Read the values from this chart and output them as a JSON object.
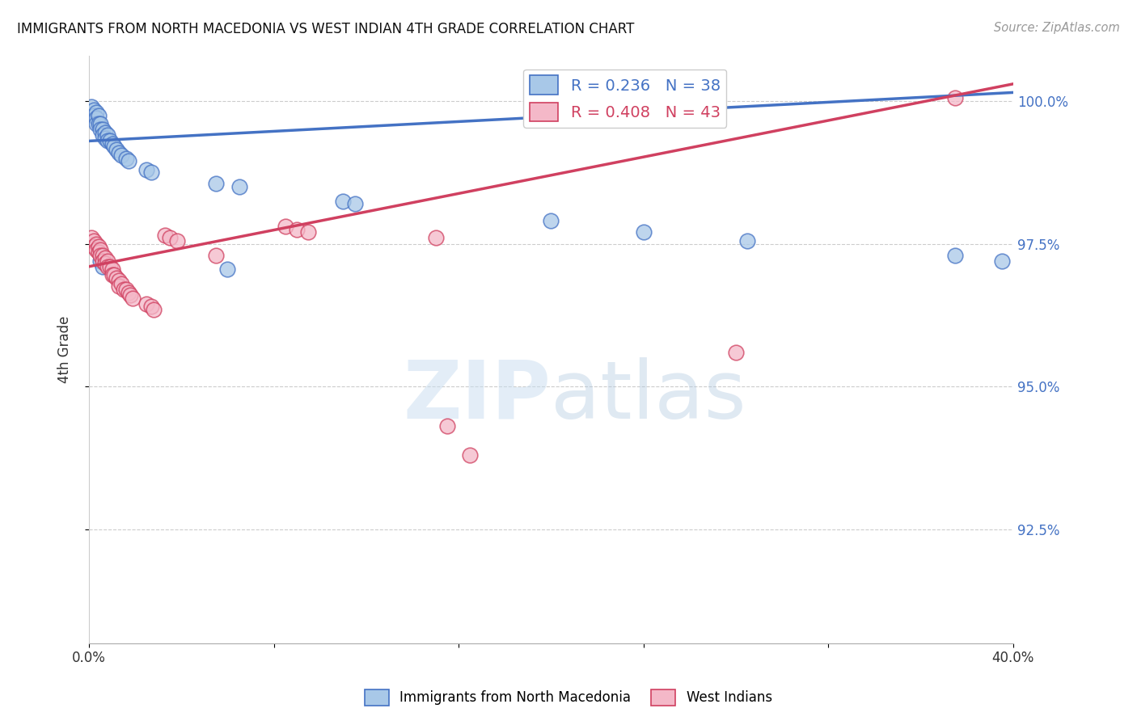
{
  "title": "IMMIGRANTS FROM NORTH MACEDONIA VS WEST INDIAN 4TH GRADE CORRELATION CHART",
  "source": "Source: ZipAtlas.com",
  "ylabel": "4th Grade",
  "legend_label_blue": "Immigrants from North Macedonia",
  "legend_label_pink": "West Indians",
  "blue_color": "#a8c8e8",
  "pink_color": "#f4b8c8",
  "blue_line_color": "#4472c4",
  "pink_line_color": "#d04060",
  "xlim": [
    0.0,
    0.4
  ],
  "ylim": [
    0.905,
    1.008
  ],
  "yticks": [
    0.925,
    0.95,
    0.975,
    1.0
  ],
  "ytick_labels": [
    "92.5%",
    "95.0%",
    "97.5%",
    "100.0%"
  ],
  "blue_x": [
    0.001,
    0.002,
    0.002,
    0.003,
    0.003,
    0.003,
    0.004,
    0.004,
    0.005,
    0.005,
    0.006,
    0.006,
    0.007,
    0.007,
    0.008,
    0.008,
    0.009,
    0.01,
    0.011,
    0.012,
    0.013,
    0.014,
    0.016,
    0.017,
    0.025,
    0.027,
    0.055,
    0.065,
    0.11,
    0.115,
    0.2,
    0.24,
    0.285,
    0.375,
    0.395,
    0.005,
    0.006,
    0.06
  ],
  "blue_y": [
    0.999,
    0.9985,
    0.9975,
    0.998,
    0.997,
    0.996,
    0.9975,
    0.996,
    0.996,
    0.995,
    0.995,
    0.994,
    0.9945,
    0.9935,
    0.994,
    0.993,
    0.993,
    0.9925,
    0.992,
    0.9915,
    0.991,
    0.9905,
    0.99,
    0.9895,
    0.988,
    0.9875,
    0.9855,
    0.985,
    0.9825,
    0.982,
    0.979,
    0.977,
    0.9755,
    0.973,
    0.972,
    0.972,
    0.971,
    0.9705
  ],
  "pink_x": [
    0.001,
    0.002,
    0.002,
    0.003,
    0.003,
    0.004,
    0.004,
    0.005,
    0.005,
    0.006,
    0.006,
    0.007,
    0.007,
    0.008,
    0.008,
    0.009,
    0.01,
    0.01,
    0.011,
    0.012,
    0.013,
    0.013,
    0.014,
    0.015,
    0.016,
    0.017,
    0.018,
    0.019,
    0.025,
    0.027,
    0.028,
    0.033,
    0.035,
    0.038,
    0.055,
    0.085,
    0.09,
    0.095,
    0.15,
    0.155,
    0.165,
    0.28,
    0.375
  ],
  "pink_y": [
    0.976,
    0.9755,
    0.9745,
    0.975,
    0.974,
    0.9745,
    0.9735,
    0.974,
    0.973,
    0.973,
    0.972,
    0.9725,
    0.9715,
    0.972,
    0.971,
    0.971,
    0.9705,
    0.9695,
    0.9695,
    0.969,
    0.9685,
    0.9675,
    0.968,
    0.967,
    0.967,
    0.9665,
    0.966,
    0.9655,
    0.9645,
    0.964,
    0.9635,
    0.9765,
    0.976,
    0.9755,
    0.973,
    0.978,
    0.9775,
    0.977,
    0.976,
    0.943,
    0.938,
    0.956,
    1.0005
  ]
}
